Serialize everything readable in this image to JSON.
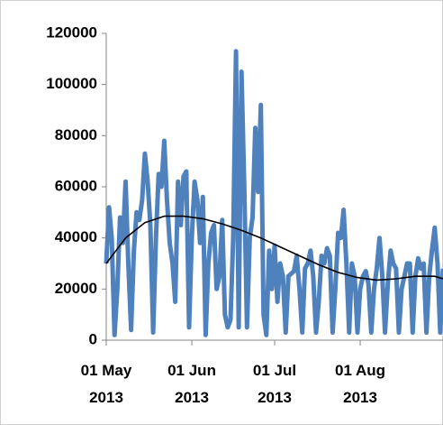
{
  "chart_data": {
    "type": "line",
    "x": [
      "2013-05-01",
      "2013-05-02",
      "2013-05-03",
      "2013-05-04",
      "2013-05-05",
      "2013-05-06",
      "2013-05-07",
      "2013-05-08",
      "2013-05-09",
      "2013-05-10",
      "2013-05-11",
      "2013-05-12",
      "2013-05-13",
      "2013-05-14",
      "2013-05-15",
      "2013-05-16",
      "2013-05-17",
      "2013-05-18",
      "2013-05-19",
      "2013-05-20",
      "2013-05-21",
      "2013-05-22",
      "2013-05-23",
      "2013-05-24",
      "2013-05-25",
      "2013-05-26",
      "2013-05-27",
      "2013-05-28",
      "2013-05-29",
      "2013-05-30",
      "2013-05-31",
      "2013-06-01",
      "2013-06-02",
      "2013-06-03",
      "2013-06-04",
      "2013-06-05",
      "2013-06-06",
      "2013-06-07",
      "2013-06-08",
      "2013-06-09",
      "2013-06-10",
      "2013-06-11",
      "2013-06-12",
      "2013-06-13",
      "2013-06-14",
      "2013-06-15",
      "2013-06-16",
      "2013-06-17",
      "2013-06-18",
      "2013-06-19",
      "2013-06-20",
      "2013-06-21",
      "2013-06-22",
      "2013-06-23",
      "2013-06-24",
      "2013-06-25",
      "2013-06-26",
      "2013-06-27",
      "2013-06-28",
      "2013-06-29",
      "2013-06-30",
      "2013-07-01",
      "2013-07-02",
      "2013-07-03",
      "2013-07-04",
      "2013-07-05",
      "2013-07-06",
      "2013-07-07",
      "2013-07-08",
      "2013-07-09",
      "2013-07-10",
      "2013-07-11",
      "2013-07-12",
      "2013-07-13",
      "2013-07-14",
      "2013-07-15",
      "2013-07-16",
      "2013-07-17",
      "2013-07-18",
      "2013-07-19",
      "2013-07-20",
      "2013-07-21",
      "2013-07-22",
      "2013-07-23",
      "2013-07-24",
      "2013-07-25",
      "2013-07-26",
      "2013-07-27",
      "2013-07-28",
      "2013-07-29",
      "2013-07-30",
      "2013-07-31",
      "2013-08-01",
      "2013-08-02",
      "2013-08-03",
      "2013-08-04",
      "2013-08-05",
      "2013-08-06",
      "2013-08-07",
      "2013-08-08",
      "2013-08-09",
      "2013-08-10",
      "2013-08-11",
      "2013-08-12",
      "2013-08-13",
      "2013-08-14",
      "2013-08-15",
      "2013-08-16",
      "2013-08-17",
      "2013-08-18",
      "2013-08-19",
      "2013-08-20",
      "2013-08-21",
      "2013-08-22",
      "2013-08-23",
      "2013-08-24",
      "2013-08-25",
      "2013-08-26",
      "2013-08-27",
      "2013-08-28",
      "2013-08-29",
      "2013-08-30",
      "2013-08-31"
    ],
    "series": [
      {
        "color": "#4f81bd",
        "values": [
          30000,
          52000,
          40000,
          2000,
          20000,
          48000,
          38000,
          62000,
          30000,
          4000,
          35000,
          50000,
          47000,
          55000,
          73000,
          62000,
          45000,
          3000,
          40000,
          65000,
          60000,
          78000,
          55000,
          38000,
          30000,
          15000,
          62000,
          45000,
          64000,
          66000,
          5000,
          40000,
          62000,
          55000,
          38000,
          56000,
          2000,
          30000,
          42000,
          45000,
          20000,
          25000,
          47000,
          10000,
          5000,
          8000,
          40000,
          113000,
          5000,
          105000,
          60000,
          5000,
          40000,
          48000,
          83000,
          58000,
          92000,
          10000,
          2000,
          35000,
          20000,
          37000,
          15000,
          30000,
          25000,
          3000,
          25000,
          26000,
          27000,
          33000,
          20000,
          3000,
          28000,
          30000,
          35000,
          25000,
          3000,
          15000,
          33000,
          30000,
          36000,
          33000,
          3000,
          20000,
          42000,
          40000,
          51000,
          30000,
          3000,
          30000,
          25000,
          3000,
          20000,
          25000,
          27000,
          22000,
          3000,
          20000,
          28000,
          40000,
          25000,
          3000,
          22000,
          35000,
          30000,
          28000,
          3000,
          20000,
          25000,
          30000,
          30000,
          3000,
          25000,
          32000,
          28000,
          30000,
          3000,
          25000,
          35000,
          44000,
          30000,
          3000,
          28000
        ]
      },
      {
        "color": "#000000",
        "x": [
          "2013-05-01",
          "2013-05-08",
          "2013-05-15",
          "2013-05-22",
          "2013-05-29",
          "2013-06-05",
          "2013-06-12",
          "2013-06-19",
          "2013-06-26",
          "2013-07-03",
          "2013-07-10",
          "2013-07-17",
          "2013-07-24",
          "2013-07-31",
          "2013-08-07",
          "2013-08-14",
          "2013-08-21",
          "2013-08-28",
          "2013-08-31"
        ],
        "values": [
          30000,
          40000,
          46000,
          48500,
          48500,
          47500,
          45500,
          43000,
          40000,
          36500,
          33000,
          29500,
          26500,
          24500,
          23500,
          24000,
          25000,
          25000,
          24000
        ]
      }
    ],
    "xlim": [
      "2013-05-01",
      "2013-08-31"
    ],
    "xticks": [
      {
        "value": "2013-05-01",
        "label": "01 May 2013"
      },
      {
        "value": "2013-06-01",
        "label": "01 Jun 2013"
      },
      {
        "value": "2013-07-01",
        "label": "01 Jul 2013"
      },
      {
        "value": "2013-08-01",
        "label": "01 Aug 2013"
      }
    ],
    "ylim": [
      0,
      120000
    ],
    "yticks": [
      0,
      20000,
      40000,
      60000,
      80000,
      100000,
      120000
    ]
  }
}
